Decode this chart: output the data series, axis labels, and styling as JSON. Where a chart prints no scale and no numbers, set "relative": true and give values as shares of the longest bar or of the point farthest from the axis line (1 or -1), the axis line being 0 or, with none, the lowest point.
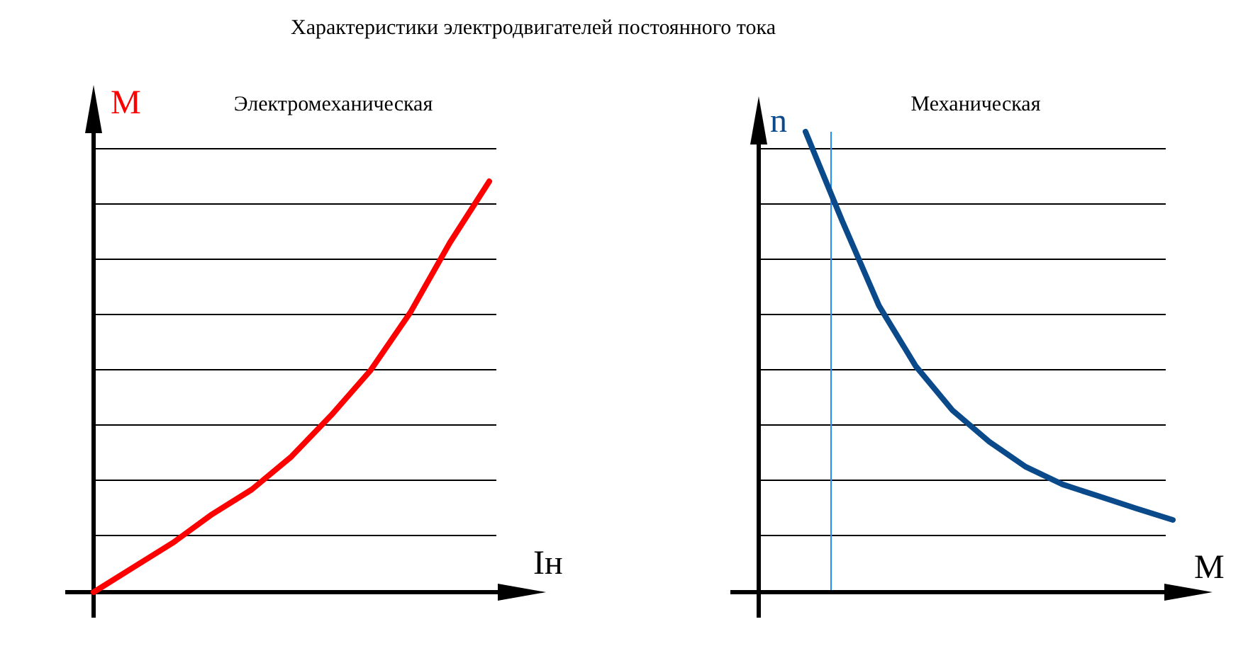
{
  "chart_data": [
    {
      "type": "line",
      "title": "Электромеханическая",
      "annotations": [
        "Характеристики электродвигателей постоянного тока"
      ],
      "xlabel": "Iн",
      "ylabel": "M",
      "relative": true,
      "grid": "y",
      "categories": [
        null,
        null,
        null,
        null,
        null,
        null,
        null,
        null,
        null,
        null,
        null
      ],
      "series": [
        {
          "color": "#ff0000",
          "values": [
            0,
            0.06,
            0.12,
            0.19,
            0.25,
            0.33,
            0.43,
            0.54,
            0.68,
            0.85,
            1.0
          ]
        }
      ]
    },
    {
      "type": "line",
      "title": "Механическая",
      "xlabel": "M",
      "ylabel": "n",
      "relative": true,
      "grid": "y",
      "categories": [
        null,
        null,
        null,
        null,
        null,
        null,
        null,
        null,
        null,
        null,
        null
      ],
      "series": [
        {
          "color": "#0b4a8a",
          "values": [
            1.0,
            0.806,
            0.622,
            0.491,
            0.395,
            0.327,
            0.272,
            0.234,
            0.208,
            0.182,
            0.157
          ]
        }
      ]
    }
  ]
}
